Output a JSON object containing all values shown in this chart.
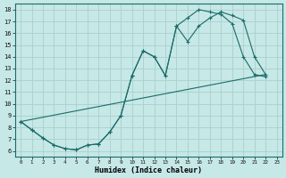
{
  "xlabel": "Humidex (Indice chaleur)",
  "xlim": [
    -0.5,
    23.5
  ],
  "ylim": [
    5.5,
    18.5
  ],
  "xticks": [
    0,
    1,
    2,
    3,
    4,
    5,
    6,
    7,
    8,
    9,
    10,
    11,
    12,
    13,
    14,
    15,
    16,
    17,
    18,
    19,
    20,
    21,
    22,
    23
  ],
  "yticks": [
    6,
    7,
    8,
    9,
    10,
    11,
    12,
    13,
    14,
    15,
    16,
    17,
    18
  ],
  "bg_color": "#c6e8e6",
  "grid_color": "#aad0ce",
  "line_color": "#1a6b6b",
  "line1_x": [
    0,
    1,
    2,
    3,
    4,
    5,
    6,
    7,
    8,
    9,
    10,
    11,
    12,
    13,
    14,
    15,
    16,
    17,
    18,
    19,
    20,
    21,
    22
  ],
  "line1_y": [
    8.5,
    7.8,
    7.1,
    6.5,
    6.2,
    6.1,
    6.5,
    6.6,
    7.6,
    9.0,
    12.4,
    14.5,
    14.0,
    12.4,
    16.6,
    15.3,
    16.6,
    17.3,
    17.8,
    17.5,
    17.1,
    14.0,
    12.5
  ],
  "line2_x": [
    0,
    1,
    2,
    3,
    4,
    5,
    6,
    7,
    8,
    9,
    10,
    11,
    12,
    13,
    14,
    15,
    16,
    17,
    18,
    19,
    20,
    21,
    22
  ],
  "line2_y": [
    8.5,
    7.8,
    7.1,
    6.5,
    6.2,
    6.1,
    6.5,
    6.6,
    7.6,
    9.0,
    12.4,
    14.5,
    14.0,
    12.4,
    16.6,
    17.3,
    18.0,
    17.8,
    17.6,
    16.8,
    14.0,
    12.5,
    12.3
  ],
  "line3_x": [
    0,
    22
  ],
  "line3_y": [
    8.5,
    12.5
  ]
}
